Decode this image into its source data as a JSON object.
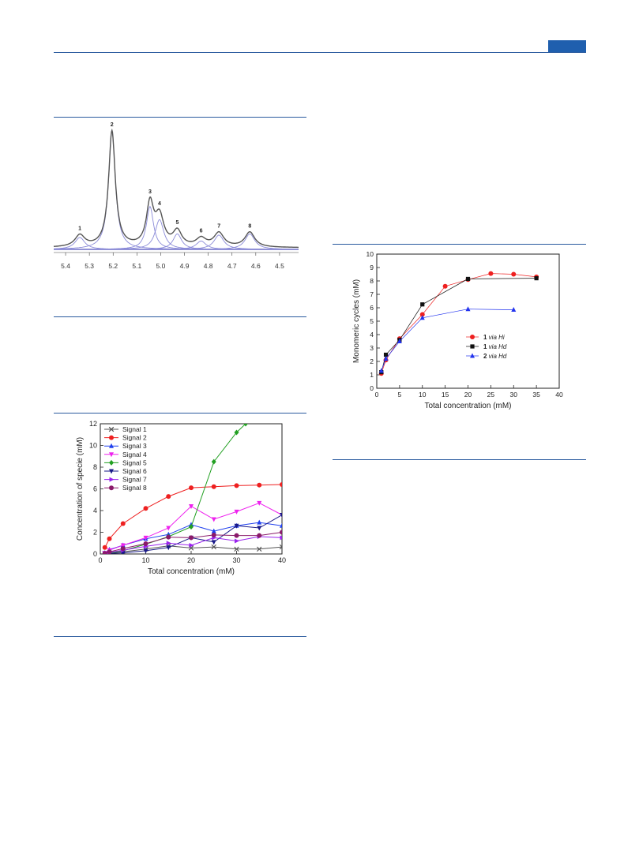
{
  "page": {
    "accent_color": "#1f5fae",
    "rule_color": "#2a5a9e"
  },
  "chart_data": [
    {
      "id": "nmr",
      "type": "line",
      "xlabel": "",
      "ylabel": "",
      "xlim": [
        5.45,
        4.42
      ],
      "x_ticks": [
        "5.4",
        "5.3",
        "5.2",
        "5.1",
        "5.0",
        "4.9",
        "4.8",
        "4.7",
        "4.6",
        "4.5"
      ],
      "x_tick_values": [
        5.4,
        5.3,
        5.2,
        5.1,
        5.0,
        4.9,
        4.8,
        4.7,
        4.6,
        4.5
      ],
      "peaks": [
        {
          "label": "1",
          "ppm": 5.34,
          "height": 0.1,
          "width": 0.025
        },
        {
          "label": "2",
          "ppm": 5.205,
          "height": 1.0,
          "width": 0.017
        },
        {
          "label": "3",
          "ppm": 5.045,
          "height": 0.36,
          "width": 0.018
        },
        {
          "label": "4",
          "ppm": 5.005,
          "height": 0.25,
          "width": 0.022
        },
        {
          "label": "5",
          "ppm": 4.93,
          "height": 0.13,
          "width": 0.022
        },
        {
          "label": "6",
          "ppm": 4.83,
          "height": 0.07,
          "width": 0.025
        },
        {
          "label": "7",
          "ppm": 4.755,
          "height": 0.12,
          "width": 0.025
        },
        {
          "label": "8",
          "ppm": 4.625,
          "height": 0.13,
          "width": 0.025
        }
      ],
      "colors": {
        "envelope": "#555555",
        "components": "#8a8ad8",
        "baseline": "#3a3aa8"
      }
    },
    {
      "id": "species",
      "type": "line",
      "xlabel": "Total concentration (mM)",
      "ylabel": "Concentration of specie (mM)",
      "xlim": [
        0,
        40
      ],
      "ylim": [
        0,
        12
      ],
      "x_ticks": [
        0,
        10,
        20,
        30,
        40
      ],
      "y_ticks": [
        0,
        2,
        4,
        6,
        8,
        10,
        12
      ],
      "x": [
        1,
        2,
        5,
        10,
        15,
        20,
        25,
        30,
        35,
        40
      ],
      "series": [
        {
          "name": "Signal 1",
          "color": "#555555",
          "marker": "x",
          "values": [
            0.05,
            0.1,
            0.2,
            0.45,
            0.75,
            0.55,
            0.65,
            0.45,
            0.45,
            0.65
          ]
        },
        {
          "name": "Signal 2",
          "color": "#ee2020",
          "marker": "circle",
          "values": [
            0.6,
            1.4,
            2.8,
            4.2,
            5.3,
            6.1,
            6.2,
            6.3,
            6.35,
            6.4
          ]
        },
        {
          "name": "Signal 3",
          "color": "#2040ee",
          "marker": "triangle-up",
          "values": [
            0.1,
            0.4,
            0.8,
            1.4,
            1.8,
            2.7,
            2.1,
            2.6,
            2.9,
            2.6
          ]
        },
        {
          "name": "Signal 4",
          "color": "#ee22ee",
          "marker": "triangle-down",
          "values": [
            0.1,
            0.35,
            0.8,
            1.5,
            2.4,
            4.4,
            3.2,
            3.9,
            4.7,
            3.6
          ]
        },
        {
          "name": "Signal 5",
          "color": "#22a022",
          "marker": "diamond",
          "x": [
            1,
            2,
            5,
            10,
            15,
            20,
            25,
            30,
            32
          ],
          "values": [
            0.05,
            0.1,
            0.3,
            0.9,
            1.6,
            2.5,
            8.5,
            11.2,
            12.0
          ]
        },
        {
          "name": "Signal 6",
          "color": "#1a1a88",
          "marker": "triangle-down",
          "values": [
            0.02,
            0.05,
            0.1,
            0.3,
            0.6,
            1.5,
            1.1,
            2.6,
            2.4,
            3.6
          ]
        },
        {
          "name": "Signal 7",
          "color": "#9a22ee",
          "marker": "triangle-right",
          "values": [
            0.05,
            0.15,
            0.35,
            0.7,
            1.0,
            0.8,
            1.5,
            1.2,
            1.6,
            1.5
          ]
        },
        {
          "name": "Signal 8",
          "color": "#8a1a6a",
          "marker": "circle",
          "values": [
            0.05,
            0.2,
            0.5,
            0.95,
            1.55,
            1.5,
            1.75,
            1.7,
            1.7,
            2.0
          ]
        }
      ],
      "legend": "top-left"
    },
    {
      "id": "monomeric",
      "type": "line",
      "xlabel": "Total concentration (mM)",
      "ylabel": "Monomeric cycles (mM)",
      "xlim": [
        0,
        40
      ],
      "ylim": [
        0,
        10
      ],
      "x_ticks": [
        0,
        5,
        10,
        15,
        20,
        25,
        30,
        35,
        40
      ],
      "y_ticks": [
        0,
        1,
        2,
        3,
        4,
        5,
        6,
        7,
        8,
        9,
        10
      ],
      "series": [
        {
          "bold": "1",
          "italic": "via Hi",
          "color": "#ee2020",
          "marker": "circle",
          "x": [
            1,
            2,
            5,
            10,
            15,
            20,
            25,
            30,
            35
          ],
          "values": [
            1.1,
            2.1,
            3.7,
            5.5,
            7.6,
            8.1,
            8.55,
            8.5,
            8.3
          ]
        },
        {
          "bold": "1",
          "italic": "via Hd",
          "color": "#111111",
          "marker": "square",
          "x": [
            1,
            2,
            5,
            10,
            20,
            35
          ],
          "values": [
            1.2,
            2.5,
            3.6,
            6.25,
            8.15,
            8.2
          ]
        },
        {
          "bold": "2",
          "italic": "via Hd",
          "color": "#2233ee",
          "marker": "triangle-up",
          "x": [
            1,
            2,
            5,
            10,
            20,
            30
          ],
          "values": [
            1.3,
            2.2,
            3.5,
            5.25,
            5.9,
            5.85
          ]
        }
      ],
      "legend": "center-right"
    }
  ]
}
